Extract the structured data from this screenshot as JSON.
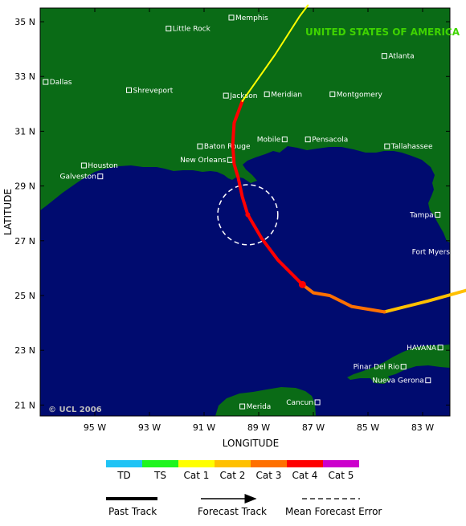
{
  "map": {
    "country_label": "UNITED STATES OF AMERICA",
    "copyright": "© UCL 2006",
    "y_axis_title": "LATITUDE",
    "x_axis_title": "LONGITUDE",
    "lat_ticks": [
      "35 N",
      "33 N",
      "31 N",
      "29 N",
      "27 N",
      "25 N",
      "23 N",
      "21 N"
    ],
    "lon_ticks": [
      "95 W",
      "93 W",
      "91 W",
      "89 W",
      "87 W",
      "85 W",
      "83 W"
    ],
    "colors": {
      "ocean": "#000b6f",
      "land": "#0a6b16",
      "city_label": "#ffffff",
      "error_circle": "#ffffff"
    },
    "cities": [
      {
        "name": "Memphis",
        "lon": -90.0,
        "lat": 35.15
      },
      {
        "name": "Little Rock",
        "lon": -92.3,
        "lat": 34.75
      },
      {
        "name": "Atlanta",
        "lon": -84.4,
        "lat": 33.75
      },
      {
        "name": "Dallas",
        "lon": -96.8,
        "lat": 32.8
      },
      {
        "name": "Shreveport",
        "lon": -93.75,
        "lat": 32.5
      },
      {
        "name": "Jackson",
        "lon": -90.2,
        "lat": 32.3
      },
      {
        "name": "Meridian",
        "lon": -88.7,
        "lat": 32.35
      },
      {
        "name": "Montgomery",
        "lon": -86.3,
        "lat": 32.35
      },
      {
        "name": "Mobile",
        "lon": -88.05,
        "lat": 30.7
      },
      {
        "name": "Pensacola",
        "lon": -87.2,
        "lat": 30.7
      },
      {
        "name": "Baton Rouge",
        "lon": -91.15,
        "lat": 30.45
      },
      {
        "name": "Tallahassee",
        "lon": -84.3,
        "lat": 30.45
      },
      {
        "name": "New Orleans",
        "lon": -90.05,
        "lat": 29.95
      },
      {
        "name": "Houston",
        "lon": -95.4,
        "lat": 29.75
      },
      {
        "name": "Galveston",
        "lon": -94.8,
        "lat": 29.35
      },
      {
        "name": "Tampa",
        "lon": -82.45,
        "lat": 27.95
      },
      {
        "name": "Fort Myers",
        "lon": -81.85,
        "lat": 26.6
      },
      {
        "name": "HAVANA",
        "lon": -82.35,
        "lat": 23.1
      },
      {
        "name": "Pinar Del Rio",
        "lon": -83.7,
        "lat": 22.4
      },
      {
        "name": "Nueva Gerona",
        "lon": -82.8,
        "lat": 21.9
      },
      {
        "name": "Merida",
        "lon": -89.6,
        "lat": 20.95
      },
      {
        "name": "Cancun",
        "lon": -86.85,
        "lat": 21.1
      }
    ],
    "track": {
      "forecast_point": {
        "lon": -89.4,
        "lat": 27.95
      },
      "current_position": {
        "lon": -87.4,
        "lat": 25.4
      },
      "error_circle": {
        "lon": -89.4,
        "lat": 27.95,
        "radius_deg": 1.1
      },
      "segments": [
        {
          "category": "Cat 2",
          "points": [
            [
              -81.0,
              25.3
            ],
            [
              -82.8,
              24.8
            ],
            [
              -84.4,
              24.4
            ]
          ]
        },
        {
          "category": "Cat 3",
          "points": [
            [
              -84.4,
              24.4
            ],
            [
              -85.6,
              24.6
            ],
            [
              -86.4,
              25.0
            ],
            [
              -87.0,
              25.1
            ],
            [
              -87.4,
              25.4
            ]
          ]
        },
        {
          "category": "Cat 4",
          "points": [
            [
              -87.4,
              25.4
            ],
            [
              -88.3,
              26.3
            ],
            [
              -88.9,
              27.1
            ],
            [
              -89.4,
              27.95
            ],
            [
              -89.6,
              28.6
            ],
            [
              -89.75,
              29.3
            ],
            [
              -89.9,
              29.8
            ],
            [
              -89.95,
              30.5
            ],
            [
              -89.9,
              31.3
            ],
            [
              -89.6,
              32.1
            ]
          ]
        },
        {
          "category": "Cat 1",
          "points": [
            [
              -89.6,
              32.1
            ],
            [
              -88.4,
              33.8
            ],
            [
              -87.5,
              35.2
            ],
            [
              -87.2,
              35.6
            ]
          ]
        }
      ]
    }
  },
  "legend": {
    "scale": [
      {
        "label": "TD",
        "color": "#1fc3f5"
      },
      {
        "label": "TS",
        "color": "#1ef51e"
      },
      {
        "label": "Cat 1",
        "color": "#ffff00"
      },
      {
        "label": "Cat 2",
        "color": "#ffc000"
      },
      {
        "label": "Cat 3",
        "color": "#ff7000"
      },
      {
        "label": "Cat 4",
        "color": "#ff0000"
      },
      {
        "label": "Cat 5",
        "color": "#cc00cc"
      }
    ],
    "past_track": "Past Track",
    "forecast_track": "Forecast Track",
    "mean_forecast_error": "Mean Forecast Error"
  }
}
